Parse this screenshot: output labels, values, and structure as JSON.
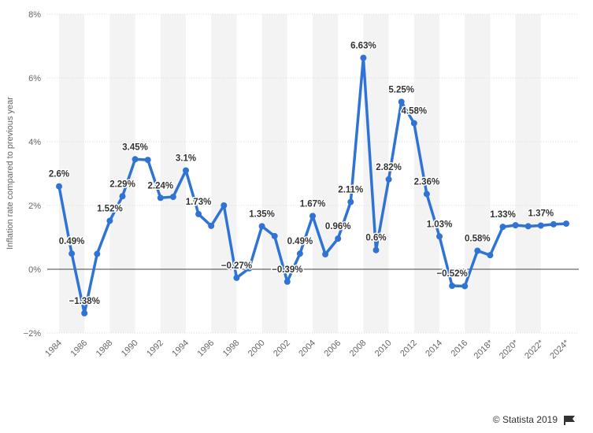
{
  "chart_data": {
    "type": "line",
    "y_axis_label": "Inflation rate compared to previous year",
    "source": "© Statista 2019",
    "categories": [
      "1984",
      null,
      "1986",
      null,
      "1988",
      null,
      "1990",
      null,
      "1992",
      null,
      "1994",
      null,
      "1996",
      null,
      "1998",
      null,
      "2000",
      null,
      "2002",
      null,
      "2004",
      null,
      "2006",
      null,
      "2008",
      null,
      "2010",
      null,
      "2012",
      null,
      "2014",
      null,
      "2016",
      null,
      "2018*",
      null,
      "2020*",
      null,
      "2022*",
      null,
      "2024*"
    ],
    "values": [
      2.6,
      0.49,
      -1.38,
      0.48,
      1.52,
      2.29,
      3.45,
      3.43,
      2.24,
      2.27,
      3.1,
      1.73,
      1.36,
      2.0,
      -0.27,
      0.03,
      1.35,
      1.04,
      -0.39,
      0.49,
      1.67,
      0.47,
      0.96,
      2.11,
      6.63,
      0.6,
      2.82,
      5.25,
      4.58,
      2.36,
      1.03,
      -0.52,
      -0.53,
      0.58,
      0.44,
      1.33,
      1.38,
      1.35,
      1.37,
      1.41,
      1.43
    ],
    "value_labels": [
      "2.6%",
      "0.49%",
      "−1.38%",
      null,
      "1.52%",
      "2.29%",
      "3.45%",
      null,
      "2.24%",
      null,
      "3.1%",
      "1.73%",
      null,
      null,
      "−0.27%",
      null,
      "1.35%",
      null,
      "−0.39%",
      "0.49%",
      "1.67%",
      null,
      "0.96%",
      "2.11%",
      "6.63%",
      "0.6%",
      "2.82%",
      "5.25%",
      "4.58%",
      "2.36%",
      "1.03%",
      "−0.52%",
      null,
      "0.58%",
      null,
      "1.33%",
      null,
      null,
      "1.37%",
      null,
      null
    ],
    "color": "#2f74d5",
    "ylim": [
      -2,
      8
    ],
    "yticks": [
      {
        "value": -2,
        "label": "−2%"
      },
      {
        "value": 0,
        "label": "0%"
      },
      {
        "value": 2,
        "label": "2%"
      },
      {
        "value": 4,
        "label": "4%"
      },
      {
        "value": 6,
        "label": "6%"
      },
      {
        "value": 8,
        "label": "8%"
      }
    ],
    "grid": true
  }
}
